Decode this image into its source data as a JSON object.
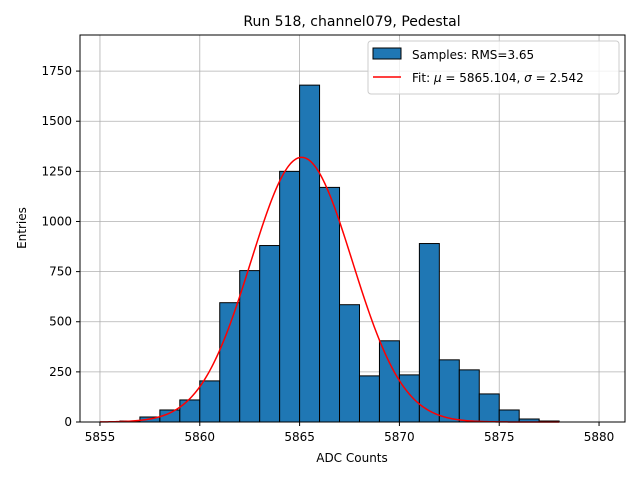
{
  "chart_data": {
    "type": "bar",
    "title": "Run 518, channel079, Pedestal",
    "xlabel": "ADC Counts",
    "ylabel": "Entries",
    "xlim": [
      5854,
      5881.3
    ],
    "ylim": [
      0,
      1930
    ],
    "xticks": [
      5855,
      5860,
      5865,
      5870,
      5875,
      5880
    ],
    "yticks": [
      0,
      250,
      500,
      750,
      1000,
      1250,
      1500,
      1750
    ],
    "grid": true,
    "bar_color": "#1f77b4",
    "fit_color": "#ff0000",
    "histogram": {
      "name": "Samples: RMS=3.65",
      "bin_edges": [
        5855,
        5856,
        5857,
        5858,
        5859,
        5860,
        5861,
        5862,
        5863,
        5864,
        5865,
        5866,
        5867,
        5868,
        5869,
        5870,
        5871,
        5872,
        5873,
        5874,
        5875,
        5876,
        5877,
        5878
      ],
      "counts": [
        0,
        5,
        25,
        60,
        110,
        205,
        595,
        755,
        880,
        1250,
        1680,
        1170,
        585,
        230,
        405,
        235,
        890,
        310,
        260,
        140,
        60,
        15,
        5
      ]
    },
    "fit": {
      "name_prefix": "Fit: ",
      "mu_label": "μ",
      "mu_value": " = 5865.104, ",
      "sigma_label": "σ",
      "sigma_value": " = 2.542",
      "mu": 5865.104,
      "sigma": 2.542,
      "amplitude": 1320,
      "x_range": [
        5855,
        5878
      ]
    },
    "legend": {
      "location": "upper right",
      "entries": [
        "Samples: RMS=3.65",
        "Fit: μ = 5865.104, σ = 2.542"
      ]
    }
  }
}
